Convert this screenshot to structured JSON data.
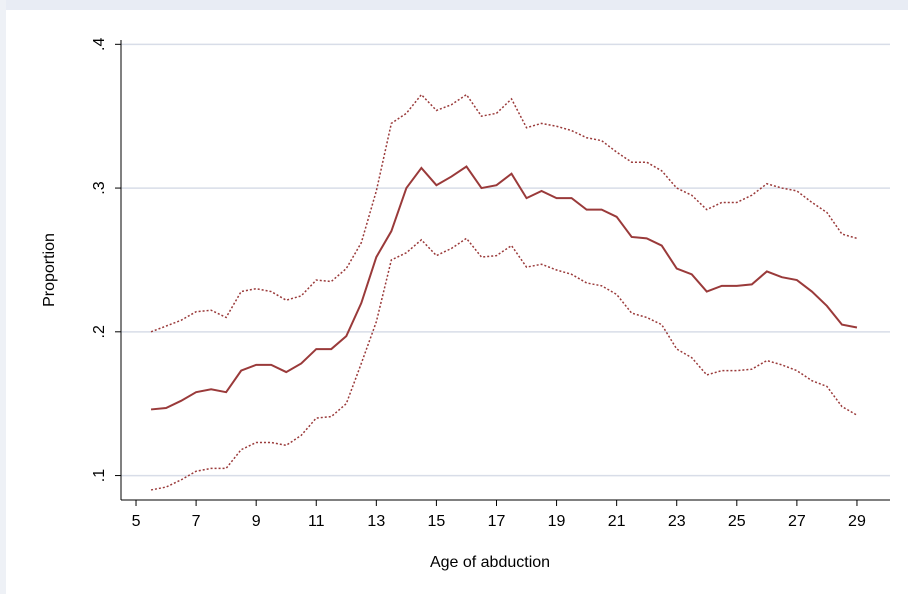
{
  "chart_data": {
    "type": "line",
    "x_label": "Age of abduction",
    "y_label": "Proportion",
    "x": [
      5.5,
      6,
      6.5,
      7,
      7.5,
      8,
      8.5,
      9,
      9.5,
      10,
      10.5,
      11,
      11.5,
      12,
      12.5,
      13,
      13.5,
      14,
      14.5,
      15,
      15.5,
      16,
      16.5,
      17,
      17.5,
      18,
      18.5,
      19,
      19.5,
      20,
      20.5,
      21,
      21.5,
      22,
      22.5,
      23,
      23.5,
      24,
      24.5,
      25,
      25.5,
      26,
      26.5,
      27,
      27.5,
      28,
      28.5,
      29
    ],
    "series": [
      {
        "color": "#9a3a3a",
        "style": "solid",
        "values": [
          0.146,
          0.147,
          0.152,
          0.158,
          0.16,
          0.158,
          0.173,
          0.177,
          0.177,
          0.172,
          0.178,
          0.188,
          0.188,
          0.197,
          0.22,
          0.252,
          0.27,
          0.3,
          0.314,
          0.302,
          0.308,
          0.315,
          0.3,
          0.302,
          0.31,
          0.293,
          0.298,
          0.293,
          0.293,
          0.285,
          0.285,
          0.28,
          0.266,
          0.265,
          0.26,
          0.244,
          0.24,
          0.228,
          0.232,
          0.232,
          0.233,
          0.242,
          0.238,
          0.236,
          0.228,
          0.218,
          0.205,
          0.203
        ]
      },
      {
        "color": "#9a3a3a",
        "style": "dotted",
        "values": [
          0.2,
          0.204,
          0.208,
          0.214,
          0.215,
          0.21,
          0.228,
          0.23,
          0.228,
          0.222,
          0.225,
          0.236,
          0.235,
          0.244,
          0.262,
          0.298,
          0.345,
          0.352,
          0.365,
          0.354,
          0.358,
          0.365,
          0.35,
          0.352,
          0.362,
          0.342,
          0.345,
          0.343,
          0.34,
          0.335,
          0.333,
          0.325,
          0.318,
          0.318,
          0.312,
          0.3,
          0.295,
          0.285,
          0.29,
          0.29,
          0.295,
          0.303,
          0.3,
          0.298,
          0.29,
          0.283,
          0.268,
          0.265
        ]
      },
      {
        "color": "#9a3a3a",
        "style": "dotted",
        "values": [
          0.09,
          0.092,
          0.097,
          0.103,
          0.105,
          0.105,
          0.118,
          0.123,
          0.123,
          0.121,
          0.128,
          0.14,
          0.141,
          0.15,
          0.178,
          0.207,
          0.25,
          0.255,
          0.264,
          0.253,
          0.258,
          0.265,
          0.252,
          0.253,
          0.26,
          0.245,
          0.247,
          0.243,
          0.24,
          0.234,
          0.232,
          0.226,
          0.213,
          0.21,
          0.205,
          0.188,
          0.182,
          0.17,
          0.173,
          0.173,
          0.174,
          0.18,
          0.177,
          0.173,
          0.166,
          0.162,
          0.148,
          0.142
        ]
      }
    ],
    "xlim": [
      4.5,
      30.1
    ],
    "xticks": [
      5,
      7,
      9,
      11,
      13,
      15,
      17,
      19,
      21,
      23,
      25,
      27,
      29
    ],
    "ylim": [
      0.083,
      0.403
    ],
    "yticks": [
      {
        "value": 0.1,
        "label": ".1"
      },
      {
        "value": 0.2,
        "label": ".2"
      },
      {
        "value": 0.3,
        "label": ".3"
      },
      {
        "value": 0.4,
        "label": ".4"
      }
    ],
    "grid": true,
    "grid_color": "#d8dde8"
  }
}
